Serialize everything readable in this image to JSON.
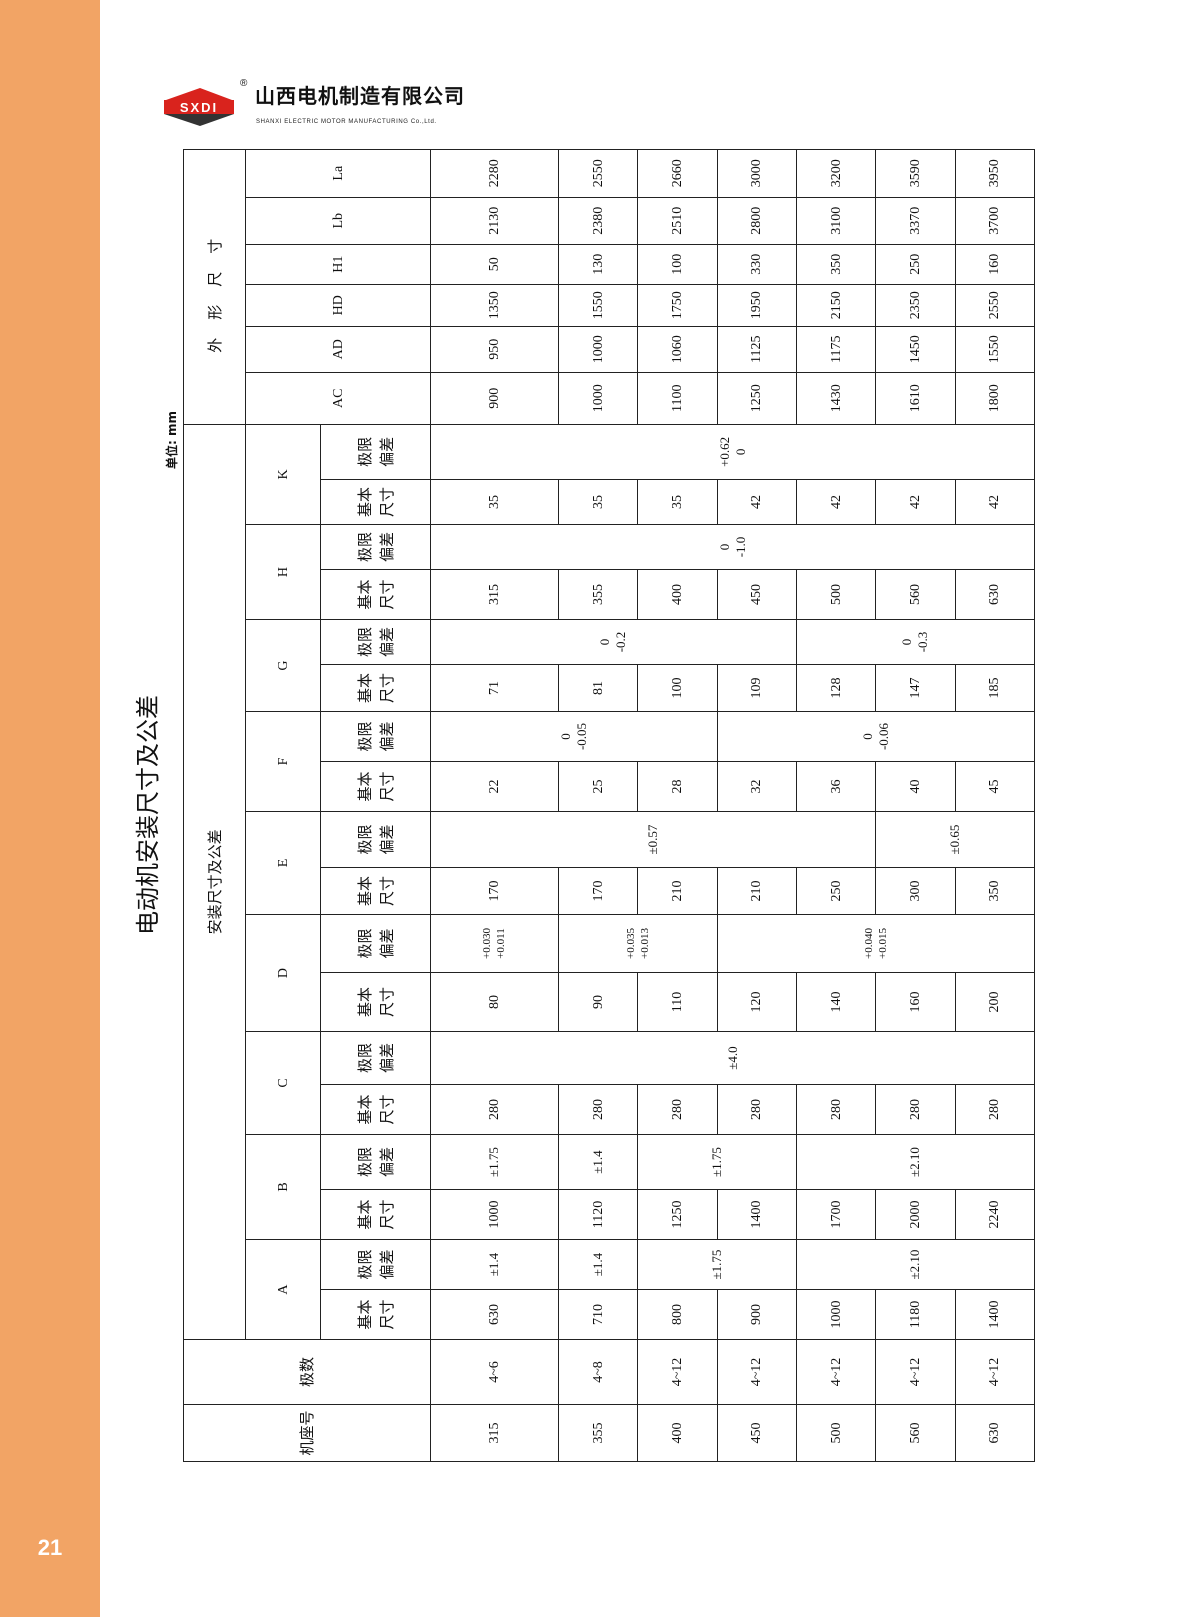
{
  "page_number": "21",
  "brand": {
    "logo_text": "SXDI",
    "name_cn": "山西电机制造有限公司",
    "name_en": "SHANXI ELECTRIC MOTOR MANUFACTURING Co.,Ltd.",
    "accent_color": "#f2a465",
    "logo_red": "#d9231d"
  },
  "title": "电动机安装尺寸及公差",
  "unit": "单位: mm",
  "table": {
    "col_frame": "机座号",
    "col_poles": "极数",
    "group_install": "安装尺寸及公差",
    "group_outline": "外形尺寸",
    "basic_label": "基本\n尺寸",
    "tol_label": "极限\n偏差",
    "install_dims": [
      "A",
      "B",
      "C",
      "D",
      "E",
      "F",
      "G",
      "H",
      "K"
    ],
    "outline_dims": [
      "AC",
      "AD",
      "HD",
      "H1",
      "Lb",
      "La"
    ],
    "rows": [
      {
        "frame": "315",
        "poles": "4~6",
        "basic": [
          "630",
          "1000",
          "280",
          "80",
          "170",
          "22",
          "71",
          "315",
          "35"
        ],
        "outline": [
          "900",
          "950",
          "1350",
          "50",
          "2130",
          "2280"
        ]
      },
      {
        "frame": "355",
        "poles": "4~8",
        "basic": [
          "710",
          "1120",
          "280",
          "90",
          "170",
          "25",
          "81",
          "355",
          "35"
        ],
        "outline": [
          "1000",
          "1000",
          "1550",
          "130",
          "2380",
          "2550"
        ]
      },
      {
        "frame": "400",
        "poles": "4~12",
        "basic": [
          "800",
          "1250",
          "280",
          "110",
          "210",
          "28",
          "100",
          "400",
          "35"
        ],
        "outline": [
          "1100",
          "1060",
          "1750",
          "100",
          "2510",
          "2660"
        ]
      },
      {
        "frame": "450",
        "poles": "4~12",
        "basic": [
          "900",
          "1400",
          "280",
          "120",
          "210",
          "32",
          "109",
          "450",
          "42"
        ],
        "outline": [
          "1250",
          "1125",
          "1950",
          "330",
          "2800",
          "3000"
        ]
      },
      {
        "frame": "500",
        "poles": "4~12",
        "basic": [
          "1000",
          "1700",
          "280",
          "140",
          "250",
          "36",
          "128",
          "500",
          "42"
        ],
        "outline": [
          "1430",
          "1175",
          "2150",
          "350",
          "3100",
          "3200"
        ]
      },
      {
        "frame": "560",
        "poles": "4~12",
        "basic": [
          "1180",
          "2000",
          "280",
          "160",
          "300",
          "40",
          "147",
          "560",
          "42"
        ],
        "outline": [
          "1610",
          "1450",
          "2350",
          "250",
          "3370",
          "3590"
        ]
      },
      {
        "frame": "630",
        "poles": "4~12",
        "basic": [
          "1400",
          "2240",
          "280",
          "200",
          "350",
          "45",
          "185",
          "630",
          "42"
        ],
        "outline": [
          "1800",
          "1550",
          "2550",
          "160",
          "3700",
          "3950"
        ]
      }
    ],
    "tolerances": [
      [
        {
          "value": "±1.4",
          "span": 1
        },
        {
          "value": "±1.4",
          "span": 1
        },
        {
          "value": "±1.75",
          "span": 2
        },
        {
          "value": "±2.10",
          "span": 3
        }
      ],
      [
        {
          "value": "±1.75",
          "span": 1
        },
        {
          "value": "±1.4",
          "span": 1
        },
        {
          "value": "±1.75",
          "span": 2
        },
        {
          "value": "±2.10",
          "span": 3
        }
      ],
      [
        {
          "value": "±4.0",
          "span": 7
        }
      ],
      [
        {
          "value": "+0.030\n+0.011",
          "span": 1
        },
        {
          "value": "+0.035\n+0.013",
          "span": 2
        },
        {
          "value": "+0.040\n+0.015",
          "span": 4
        }
      ],
      [
        {
          "value": "±0.57",
          "span": 5
        },
        {
          "value": "±0.65",
          "span": 2
        }
      ],
      [
        {
          "value": "0\n-0.05",
          "span": 3
        },
        {
          "value": "0\n-0.06",
          "span": 4
        }
      ],
      [
        {
          "value": "0\n-0.2",
          "span": 4
        },
        {
          "value": "0\n-0.3",
          "span": 3
        }
      ],
      [
        {
          "value": "0\n-1.0",
          "span": 7
        }
      ],
      [
        {
          "value": "+0.62\n0",
          "span": 7
        }
      ]
    ]
  }
}
